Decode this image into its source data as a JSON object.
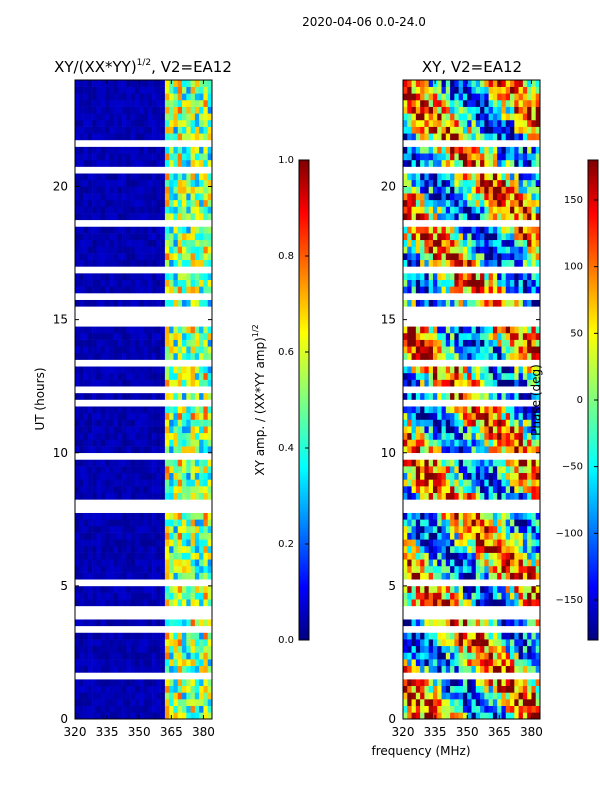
{
  "figure_title": "2020-04-06 0.0-24.0",
  "xlabel_shared": "frequency (MHz)",
  "colors": {
    "jet": [
      "#00007f",
      "#0000ff",
      "#007fff",
      "#00ffff",
      "#7fff7f",
      "#ffff00",
      "#ff7f00",
      "#ff0000",
      "#7f0000"
    ],
    "gap": "#ffffff",
    "frame": "#000000"
  },
  "chart_data": [
    {
      "type": "heatmap",
      "title_main": "XY/(XX*YY)",
      "title_sup": "1/2",
      "title_tail": ", V2=EA12",
      "xlabel": "",
      "ylabel": "UT (hours)",
      "xlim": [
        320,
        384
      ],
      "ylim": [
        0,
        24
      ],
      "xticks": [
        320,
        335,
        350,
        365,
        380
      ],
      "xtick_labels": [
        "320",
        "335",
        "350",
        "365",
        "380"
      ],
      "yticks": [
        0,
        5,
        10,
        15,
        20
      ],
      "ytick_labels": [
        "0",
        "5",
        "10",
        "15",
        "20"
      ],
      "colorbar": {
        "label_main": "XY amp. / (XX*YY amp)",
        "label_sup": "1/2",
        "range": [
          0.0,
          1.0
        ],
        "ticks": [
          0.0,
          0.2,
          0.4,
          0.6,
          0.8,
          1.0
        ],
        "tick_labels": [
          "0.0",
          "0.2",
          "0.4",
          "0.6",
          "0.8",
          "1.0"
        ]
      },
      "description": "Normalized amplitude mostly low (~0.05) below 362 MHz, higher (0.2-0.9) in 362-384 MHz band; many horizontal white flagged rows"
    },
    {
      "type": "heatmap",
      "title_main": "XY, V2=EA12",
      "title_sup": "",
      "title_tail": "",
      "xlabel": "frequency (MHz)",
      "ylabel": "",
      "xlim": [
        320,
        384
      ],
      "ylim": [
        0,
        24
      ],
      "xticks": [
        320,
        335,
        350,
        365,
        380
      ],
      "xtick_labels": [
        "320",
        "335",
        "350",
        "365",
        "380"
      ],
      "yticks": [
        0,
        5,
        10,
        15,
        20
      ],
      "ytick_labels": [
        "0",
        "5",
        "10",
        "15",
        "20"
      ],
      "colorbar": {
        "label_main": "Phase (deg)",
        "label_sup": "",
        "range": [
          -180,
          180
        ],
        "ticks": [
          -150,
          -100,
          -50,
          0,
          50,
          100,
          150
        ],
        "tick_labels": [
          "−150",
          "−100",
          "−50",
          "0",
          "50",
          "100",
          "150"
        ]
      },
      "description": "Phase spans full -180..180 range with noisy structure; horizontal white flagged rows"
    }
  ]
}
